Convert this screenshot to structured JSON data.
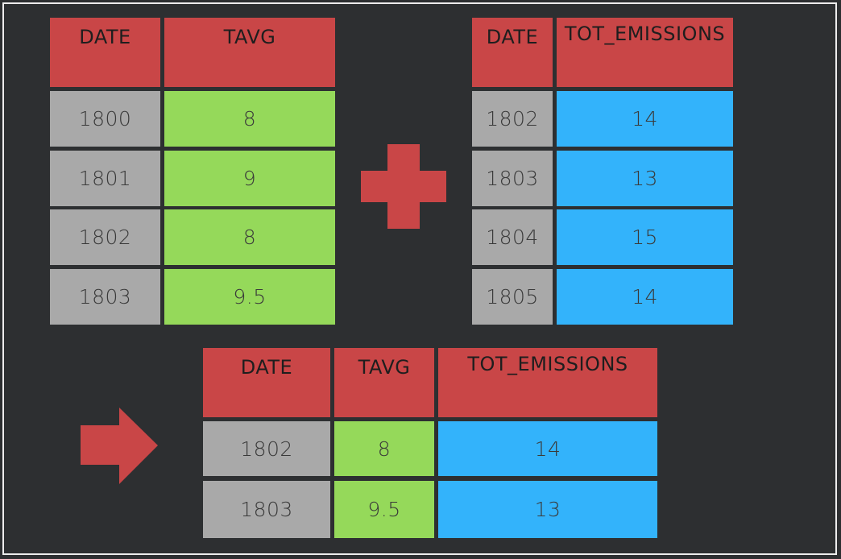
{
  "colors": {
    "background": "#2d2f31",
    "header": "#c94647",
    "date_cell": "#a9a9a9",
    "tavg_cell": "#95d95a",
    "emissions_cell": "#33b3fb",
    "operator": "#c94647"
  },
  "operators": {
    "plus": "plus-icon",
    "result": "arrow-right-icon"
  },
  "temperature_table": {
    "headers": [
      "DATE",
      "TAVG"
    ],
    "rows": [
      [
        "1800",
        "8"
      ],
      [
        "1801",
        "9"
      ],
      [
        "1802",
        "8"
      ],
      [
        "1803",
        "9.5"
      ]
    ]
  },
  "emissions_table": {
    "headers": [
      "DATE",
      "TOT_EMISSIONS"
    ],
    "rows": [
      [
        "1802",
        "14"
      ],
      [
        "1803",
        "13"
      ],
      [
        "1804",
        "15"
      ],
      [
        "1805",
        "14"
      ]
    ]
  },
  "merged_table": {
    "headers": [
      "DATE",
      "TAVG",
      "TOT_EMISSIONS"
    ],
    "rows": [
      [
        "1802",
        "8",
        "14"
      ],
      [
        "1803",
        "9.5",
        "13"
      ]
    ]
  }
}
